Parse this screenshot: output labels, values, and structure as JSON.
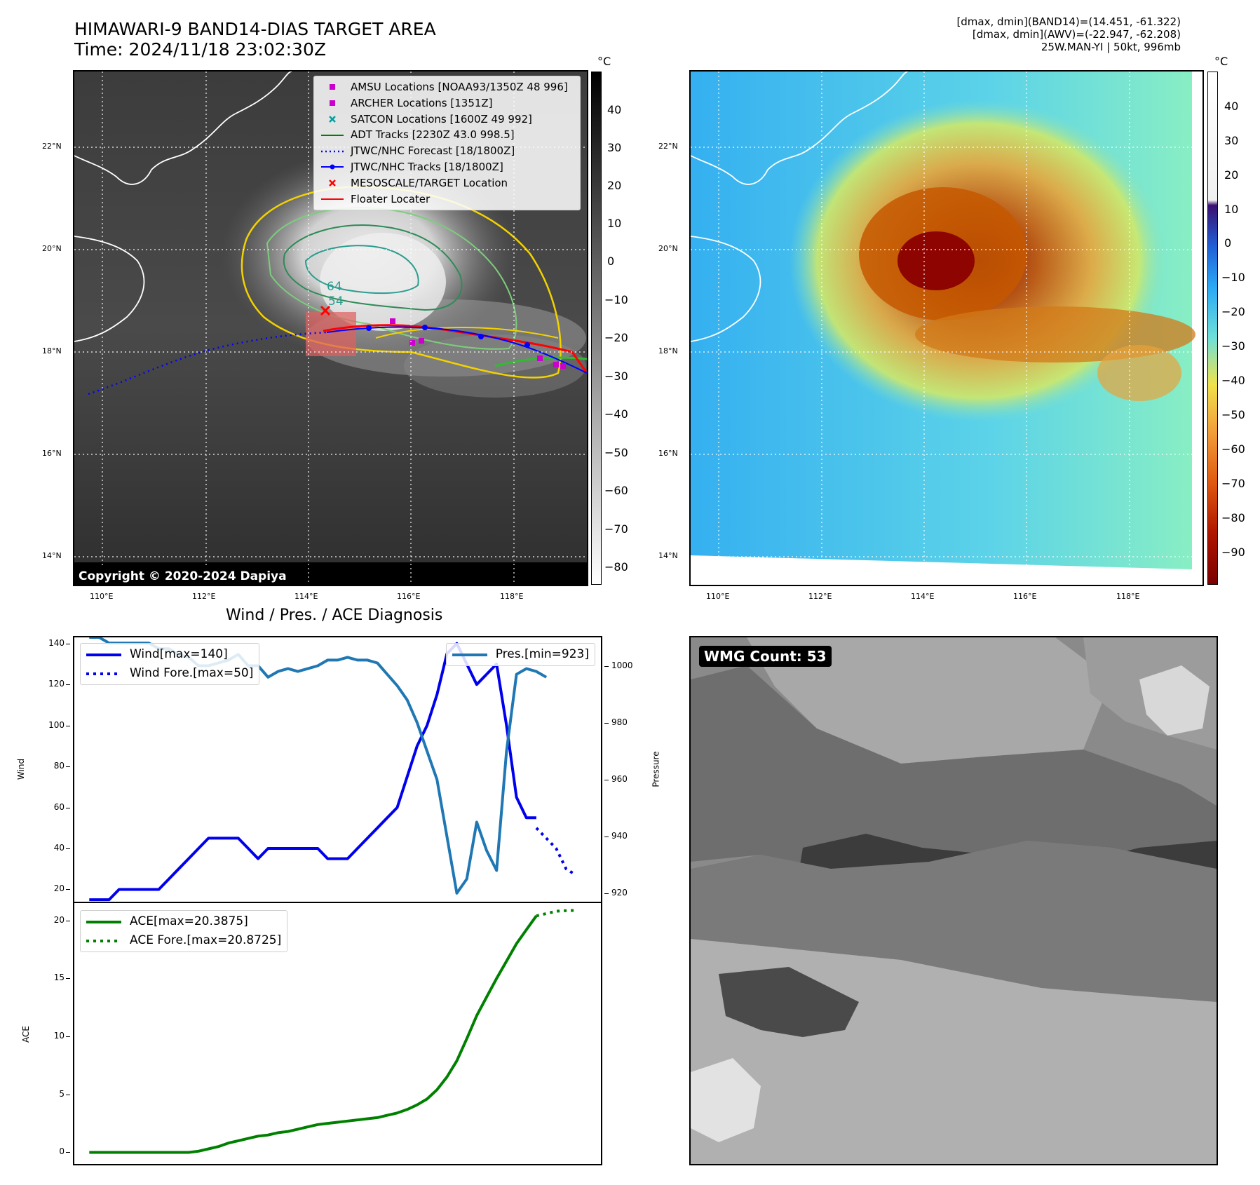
{
  "header": {
    "title_line1": "HIMAWARI-9 BAND14-DIAS TARGET AREA",
    "title_line2": "Time: 2024/11/18 23:02:30Z",
    "info_line1": "[dmax, dmin](BAND14)=(14.451, -61.322)",
    "info_line2": "[dmax, dmin](AWV)=(-22.947, -62.208)",
    "info_line3": "25W.MAN-YI | 50kt, 996mb"
  },
  "map_axes": {
    "lat_labels": [
      "22°N",
      "20°N",
      "18°N",
      "16°N",
      "14°N"
    ],
    "lon_labels": [
      "110°E",
      "112°E",
      "114°E",
      "116°E",
      "118°E"
    ]
  },
  "band14_colorbar": {
    "unit": "°C",
    "ticks": [
      "40",
      "30",
      "20",
      "10",
      "0",
      "−10",
      "−20",
      "−30",
      "−40",
      "−50",
      "−60",
      "−70",
      "−80"
    ]
  },
  "awv_colorbar": {
    "unit": "°C",
    "ticks": [
      "40",
      "30",
      "20",
      "10",
      "0",
      "−10",
      "−20",
      "−30",
      "−40",
      "−50",
      "−60",
      "−70",
      "−80",
      "−90"
    ]
  },
  "map_legend": [
    {
      "label": "AMSU Locations [NOAA93/1350Z 48 996]",
      "marker": "square",
      "color": "#cc00cc"
    },
    {
      "label": "ARCHER Locations [1351Z]",
      "marker": "square",
      "color": "#cc00cc"
    },
    {
      "label": "SATCON Locations [1600Z 49 992]",
      "marker": "x",
      "color": "#00a0a0"
    },
    {
      "label": "ADT Tracks [2230Z 43.0 998.5]",
      "marker": "line",
      "color": "#008000"
    },
    {
      "label": "JTWC/NHC Forecast [18/1800Z]",
      "marker": "dotted",
      "color": "#0000ff"
    },
    {
      "label": "JTWC/NHC Tracks [18/1800Z]",
      "marker": "line-dot",
      "color": "#0000ff"
    },
    {
      "label": "MESOSCALE/TARGET Location",
      "marker": "x",
      "color": "#ff0000"
    },
    {
      "label": "Floater Locater",
      "marker": "line",
      "color": "#ff0000"
    }
  ],
  "contour_labels": [
    "64",
    "54"
  ],
  "copyright": "Copyright © 2020-2024 Dapiya",
  "wmg": {
    "label": "WMG Count: 53",
    "count": 53
  },
  "chart_data": [
    {
      "type": "line",
      "title": "Wind / Pres. / ACE Diagnosis",
      "ylabel": "Wind",
      "y2label": "Pressure",
      "ylim": [
        14,
        143
      ],
      "y2lim": [
        917,
        1010
      ],
      "yticks": [
        20,
        40,
        60,
        80,
        100,
        120,
        140
      ],
      "y2ticks": [
        920,
        940,
        960,
        980,
        1000
      ],
      "series": [
        {
          "name": "Wind[max=140]",
          "color": "#0000ee",
          "style": "solid",
          "axis": "left",
          "x": [
            0,
            1,
            2,
            3,
            4,
            5,
            6,
            7,
            8,
            9,
            10,
            11,
            12,
            13,
            14,
            15,
            16,
            17,
            18,
            19,
            20,
            21,
            22,
            23,
            24,
            25,
            26,
            27,
            28,
            29,
            30,
            31,
            32,
            33,
            34,
            35,
            36,
            37,
            38,
            39,
            40
          ],
          "values": [
            15,
            15,
            15,
            20,
            20,
            20,
            20,
            20,
            25,
            30,
            35,
            40,
            45,
            45,
            45,
            45,
            40,
            35,
            40,
            40,
            40,
            40,
            40,
            40,
            35,
            35,
            35,
            40,
            45,
            50,
            55,
            60,
            75,
            90,
            100,
            115,
            135,
            140,
            130,
            120,
            125
          ]
        },
        {
          "name": "Wind[max=140]",
          "color": "#0000ee",
          "style": "solid",
          "axis": "left",
          "x": [
            40,
            41,
            42,
            43,
            44,
            45
          ],
          "values": [
            125,
            130,
            100,
            65,
            55,
            55
          ]
        },
        {
          "name": "Wind Fore.[max=50]",
          "color": "#0000ee",
          "style": "dotted",
          "axis": "left",
          "x": [
            45,
            46,
            47,
            48,
            49
          ],
          "values": [
            50,
            45,
            40,
            30,
            27
          ]
        },
        {
          "name": "Pres.[min=923]",
          "color": "#1f77b4",
          "style": "solid",
          "axis": "right",
          "x": [
            0,
            1,
            2,
            3,
            4,
            5,
            6,
            7,
            8,
            9,
            10,
            11,
            12,
            13,
            14,
            15,
            16,
            17,
            18,
            19,
            20,
            21,
            22,
            23,
            24,
            25,
            26,
            27,
            28,
            29,
            30,
            31,
            32,
            33,
            34,
            35,
            36,
            37,
            38,
            39,
            40,
            41,
            42,
            43,
            44,
            45,
            46
          ],
          "values": [
            1010,
            1010,
            1008,
            1008,
            1008,
            1008,
            1008,
            1006,
            1006,
            1004,
            1003,
            1000,
            1000,
            1001,
            1002,
            1004,
            1000,
            1000,
            996,
            998,
            999,
            998,
            999,
            1000,
            1002,
            1002,
            1003,
            1002,
            1002,
            1001,
            997,
            993,
            988,
            980,
            970,
            960,
            940,
            920,
            925,
            945,
            935,
            928,
            970,
            997,
            999,
            998,
            996
          ]
        }
      ]
    },
    {
      "type": "line",
      "ylabel": "ACE",
      "ylim": [
        -1,
        21.5
      ],
      "yticks": [
        0,
        5,
        10,
        15,
        20
      ],
      "series": [
        {
          "name": "ACE[max=20.3875]",
          "color": "#008000",
          "style": "solid",
          "x": [
            0,
            2,
            4,
            6,
            8,
            10,
            11,
            12,
            13,
            14,
            15,
            16,
            17,
            18,
            19,
            20,
            21,
            22,
            23,
            24,
            25,
            26,
            27,
            28,
            29,
            30,
            31,
            32,
            33,
            34,
            35,
            36,
            37,
            38,
            39,
            40,
            41,
            42,
            43,
            44,
            45
          ],
          "values": [
            0,
            0,
            0,
            0,
            0,
            0,
            0.1,
            0.3,
            0.5,
            0.8,
            1.0,
            1.2,
            1.4,
            1.5,
            1.7,
            1.8,
            2.0,
            2.2,
            2.4,
            2.5,
            2.6,
            2.7,
            2.8,
            2.9,
            3.0,
            3.2,
            3.4,
            3.7,
            4.1,
            4.6,
            5.4,
            6.5,
            7.9,
            9.8,
            11.8,
            13.4,
            15.0,
            16.5,
            18.0,
            19.2,
            20.4
          ]
        },
        {
          "name": "ACE Fore.[max=20.8725]",
          "color": "#008000",
          "style": "dotted",
          "x": [
            45,
            46,
            47,
            48,
            49
          ],
          "values": [
            20.4,
            20.6,
            20.8,
            20.85,
            20.87
          ]
        }
      ]
    }
  ]
}
